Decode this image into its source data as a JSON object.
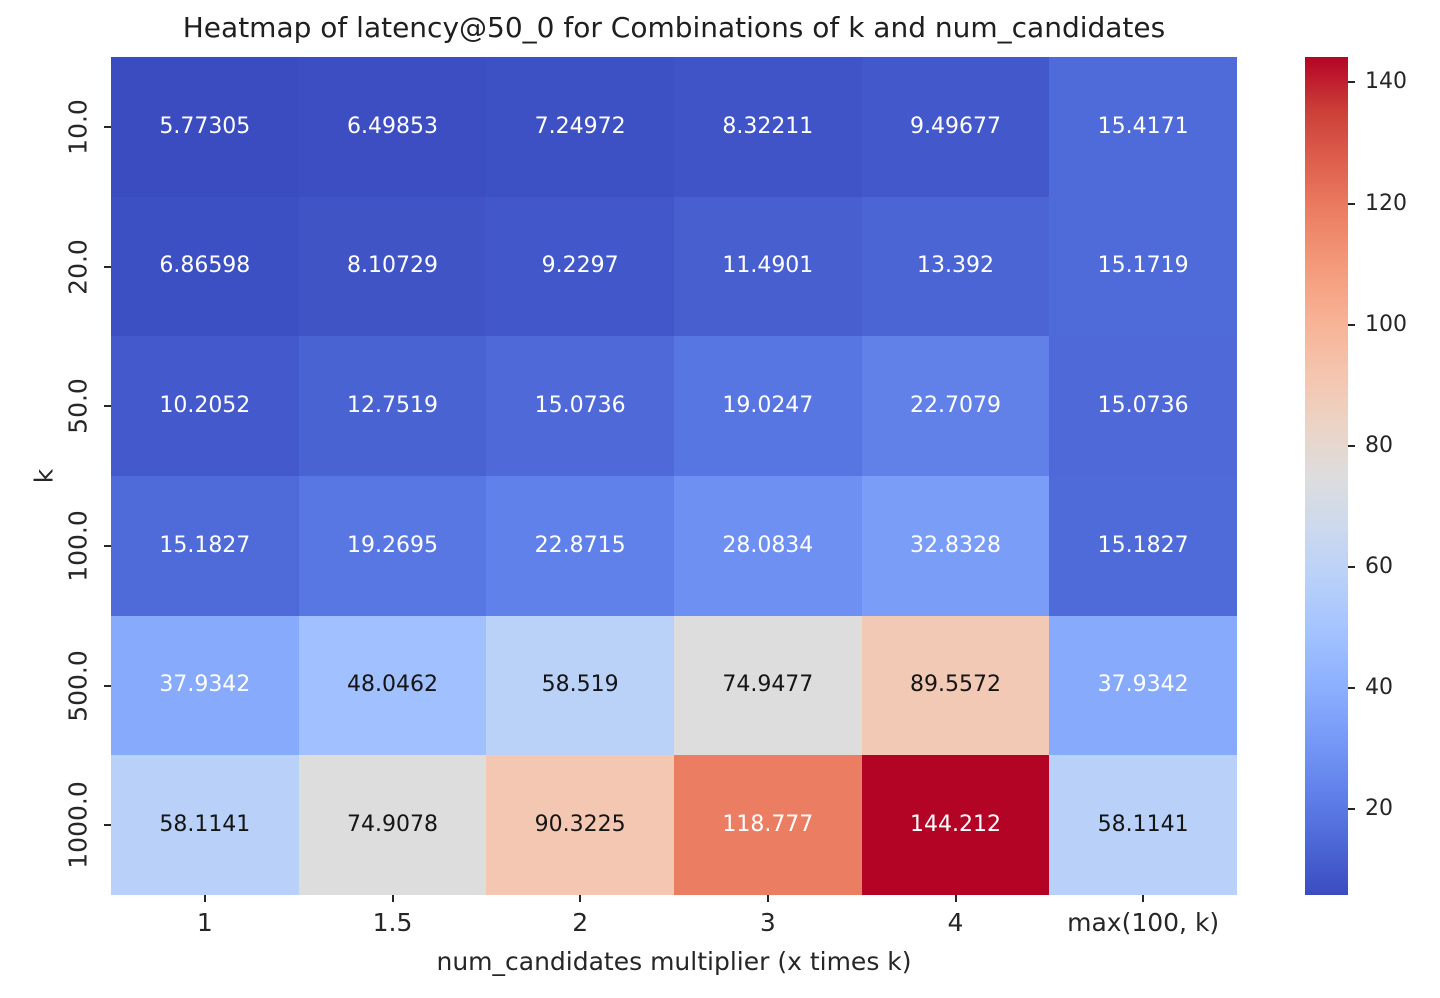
{
  "chart_data": {
    "type": "heatmap",
    "title": "Heatmap of latency@50_0 for Combinations of k and num_candidates",
    "xlabel": "num_candidates multiplier (x times k)",
    "ylabel": "k",
    "x_categories": [
      "1",
      "1.5",
      "2",
      "3",
      "4",
      "max(100, k)"
    ],
    "y_categories": [
      "10.0",
      "20.0",
      "50.0",
      "100.0",
      "500.0",
      "1000.0"
    ],
    "rows": [
      [
        5.77305,
        6.49853,
        7.24972,
        8.32211,
        9.49677,
        15.4171
      ],
      [
        6.86598,
        8.10729,
        9.2297,
        11.4901,
        13.392,
        15.1719
      ],
      [
        10.2052,
        12.7519,
        15.0736,
        19.0247,
        22.7079,
        15.0736
      ],
      [
        15.1827,
        19.2695,
        22.8715,
        28.0834,
        32.8328,
        15.1827
      ],
      [
        37.9342,
        48.0462,
        58.519,
        74.9477,
        89.5572,
        37.9342
      ],
      [
        58.1141,
        74.9078,
        90.3225,
        118.777,
        144.212,
        58.1141
      ]
    ],
    "vmin": 5.77305,
    "vmax": 144.212,
    "colormap": "coolwarm",
    "colorbar_ticks": [
      20,
      40,
      60,
      80,
      100,
      120,
      140
    ],
    "legend_position": "right-colorbar",
    "grid": false,
    "colors": {
      "cool_end": "#3b4cc0",
      "midpoint": "#dddddd",
      "warm_end": "#b40426",
      "annotation_light": "#ffffff",
      "annotation_dark": "#151515",
      "background": "#ffffff",
      "tick": "#262626"
    }
  }
}
